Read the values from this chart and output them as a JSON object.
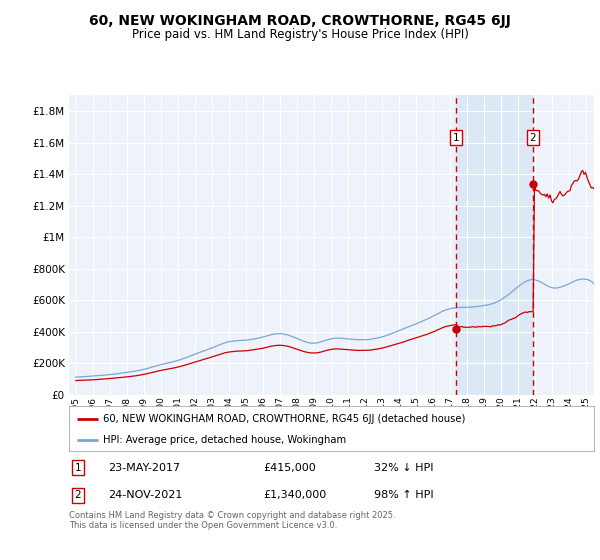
{
  "title": "60, NEW WOKINGHAM ROAD, CROWTHORNE, RG45 6JJ",
  "subtitle": "Price paid vs. HM Land Registry's House Price Index (HPI)",
  "hpi_label": "HPI: Average price, detached house, Wokingham",
  "property_label": "60, NEW WOKINGHAM ROAD, CROWTHORNE, RG45 6JJ (detached house)",
  "footer": "Contains HM Land Registry data © Crown copyright and database right 2025.\nThis data is licensed under the Open Government Licence v3.0.",
  "hpi_color": "#7ba7d4",
  "property_color": "#cc0000",
  "shade_color": "#dce8f5",
  "marker1_date": "23-MAY-2017",
  "marker1_price": 415000,
  "marker1_hpi_pct": "32% ↓ HPI",
  "marker1_year": 2017.38,
  "marker2_date": "24-NOV-2021",
  "marker2_price": 1340000,
  "marker2_hpi_pct": "98% ↑ HPI",
  "marker2_year": 2021.9,
  "ylim_max": 1900000,
  "xlim_min": 1994.6,
  "xlim_max": 2025.5,
  "background_color": "#eef2fa"
}
